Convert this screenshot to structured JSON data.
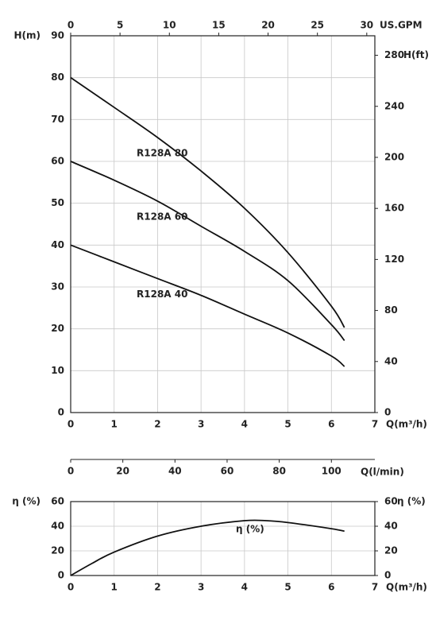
{
  "chart_data": [
    {
      "type": "line",
      "xlabel": "Q(m³/h)",
      "ylabel": "H(m)",
      "x2label": "US.GPM",
      "y2label": "H(ft)",
      "x3label": "Q(l/min)",
      "xlim": [
        0,
        7
      ],
      "xticks": [
        0,
        1,
        2,
        3,
        4,
        5,
        6,
        7
      ],
      "ylim": [
        0,
        90
      ],
      "yticks": [
        0,
        10,
        20,
        30,
        40,
        50,
        60,
        70,
        80,
        90
      ],
      "x2lim": [
        0,
        30.82
      ],
      "x2ticks": [
        0,
        5,
        10,
        15,
        20,
        25,
        30
      ],
      "y2lim": [
        0,
        295.3
      ],
      "y2ticks": [
        0,
        40,
        80,
        120,
        160,
        200,
        240,
        280
      ],
      "x3lim": [
        0,
        116.67
      ],
      "x3ticks": [
        0,
        20,
        40,
        60,
        80,
        100
      ],
      "grid": true,
      "x": [
        0,
        1,
        2,
        3,
        4,
        5,
        6,
        6.3
      ],
      "series": [
        {
          "name": "R128A 80",
          "color": "#111111",
          "values": [
            80,
            72.9,
            65.7,
            57.7,
            48.8,
            38.2,
            25.4,
            20.3
          ]
        },
        {
          "name": "R128A 60",
          "color": "#111111",
          "values": [
            60,
            55.5,
            50.5,
            44.5,
            38.5,
            31.5,
            21,
            17.2
          ]
        },
        {
          "name": "R128A 40",
          "color": "#111111",
          "values": [
            40,
            36,
            32,
            28,
            23.5,
            19,
            13.5,
            11
          ]
        }
      ]
    },
    {
      "type": "line",
      "xlabel": "Q(m³/h)",
      "ylabel": "η (%)",
      "y2label": "η (%)",
      "xlim": [
        0,
        7
      ],
      "xticks": [
        0,
        1,
        2,
        3,
        4,
        5,
        6,
        7
      ],
      "ylim": [
        0,
        60
      ],
      "yticks": [
        0,
        20,
        40,
        60
      ],
      "y2lim": [
        0,
        60
      ],
      "y2ticks": [
        0,
        20,
        40,
        60
      ],
      "grid": true,
      "x": [
        0,
        0.5,
        1,
        2,
        3,
        4,
        4.5,
        5,
        6,
        6.3
      ],
      "series": [
        {
          "name": "η (%)",
          "color": "#111111",
          "values": [
            0,
            10,
            19,
            32,
            40,
            44.5,
            44.5,
            43,
            38,
            36
          ]
        }
      ]
    }
  ]
}
